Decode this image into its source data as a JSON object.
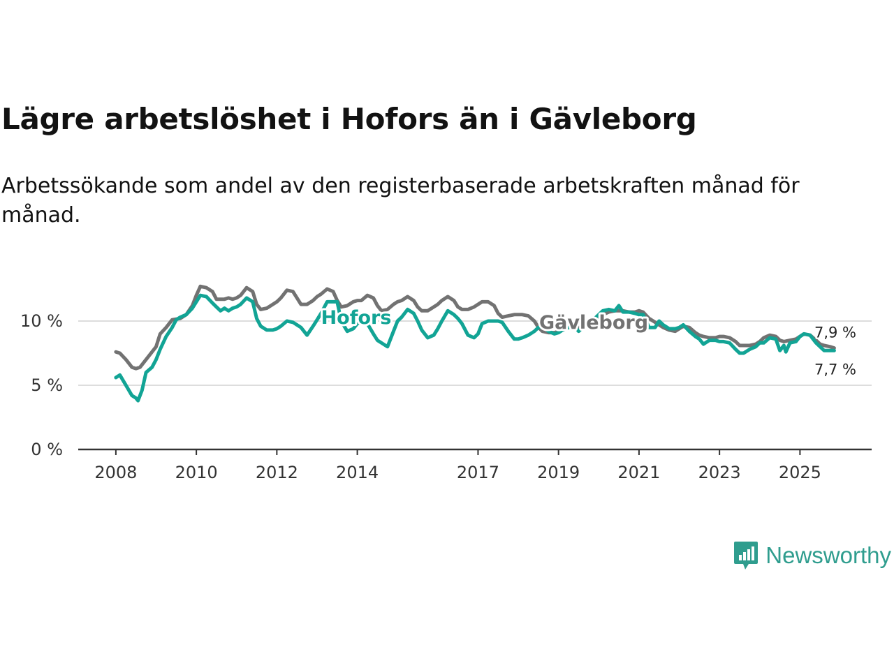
{
  "title": "Lägre arbetslöshet i Hofors än i Gävleborg",
  "subtitle": "Arbetssökande som andel av den registerbaserade arbetskraften månad för månad.",
  "brand": {
    "name": "Newsworthy",
    "icon": "newsworthy-logo-icon"
  },
  "colors": {
    "hofors": "#12a495",
    "gavleborg": "#727272",
    "axis": "#333333",
    "grid": "#dddddd"
  },
  "chart_data": {
    "type": "line",
    "title": "Lägre arbetslöshet i Hofors än i Gävleborg",
    "xlabel": "",
    "ylabel": "",
    "xlim": [
      2007.95,
      2026.0
    ],
    "ylim": [
      0,
      10
    ],
    "x_ticks": [
      {
        "value": 2008,
        "label": "2008"
      },
      {
        "value": 2010,
        "label": "2010"
      },
      {
        "value": 2012,
        "label": "2012"
      },
      {
        "value": 2014,
        "label": "2014"
      },
      {
        "value": 2017,
        "label": "2017"
      },
      {
        "value": 2019,
        "label": "2019"
      },
      {
        "value": 2021,
        "label": "2021"
      },
      {
        "value": 2023,
        "label": "2023"
      },
      {
        "value": 2025,
        "label": "2025"
      }
    ],
    "y_ticks": [
      {
        "value": 0,
        "label": "0 %"
      },
      {
        "value": 5,
        "label": "5 %"
      },
      {
        "value": 10,
        "label": "10 %"
      }
    ],
    "grid": true,
    "series": [
      {
        "name": "Gävleborg",
        "label": "Gävleborg",
        "end_label": "7,9 %",
        "points": [
          [
            2008.0,
            7.6
          ],
          [
            2008.1,
            7.5
          ],
          [
            2008.25,
            7.0
          ],
          [
            2008.4,
            6.4
          ],
          [
            2008.5,
            6.3
          ],
          [
            2008.6,
            6.4
          ],
          [
            2008.75,
            7.0
          ],
          [
            2008.9,
            7.6
          ],
          [
            2009.0,
            8.0
          ],
          [
            2009.1,
            9.0
          ],
          [
            2009.25,
            9.5
          ],
          [
            2009.4,
            10.1
          ],
          [
            2009.6,
            10.2
          ],
          [
            2009.75,
            10.5
          ],
          [
            2009.9,
            11.2
          ],
          [
            2010.0,
            12.0
          ],
          [
            2010.1,
            12.7
          ],
          [
            2010.25,
            12.6
          ],
          [
            2010.4,
            12.3
          ],
          [
            2010.5,
            11.7
          ],
          [
            2010.7,
            11.7
          ],
          [
            2010.8,
            11.8
          ],
          [
            2010.9,
            11.7
          ],
          [
            2011.0,
            11.8
          ],
          [
            2011.1,
            12.0
          ],
          [
            2011.25,
            12.6
          ],
          [
            2011.4,
            12.3
          ],
          [
            2011.5,
            11.3
          ],
          [
            2011.6,
            10.9
          ],
          [
            2011.75,
            11.0
          ],
          [
            2011.9,
            11.3
          ],
          [
            2012.0,
            11.5
          ],
          [
            2012.1,
            11.8
          ],
          [
            2012.25,
            12.4
          ],
          [
            2012.4,
            12.3
          ],
          [
            2012.5,
            11.8
          ],
          [
            2012.6,
            11.3
          ],
          [
            2012.75,
            11.3
          ],
          [
            2012.9,
            11.6
          ],
          [
            2013.0,
            11.9
          ],
          [
            2013.1,
            12.1
          ],
          [
            2013.25,
            12.5
          ],
          [
            2013.4,
            12.3
          ],
          [
            2013.5,
            11.6
          ],
          [
            2013.6,
            11.1
          ],
          [
            2013.75,
            11.2
          ],
          [
            2013.9,
            11.5
          ],
          [
            2014.0,
            11.6
          ],
          [
            2014.1,
            11.6
          ],
          [
            2014.25,
            12.0
          ],
          [
            2014.4,
            11.8
          ],
          [
            2014.5,
            11.2
          ],
          [
            2014.6,
            10.8
          ],
          [
            2014.75,
            10.9
          ],
          [
            2014.9,
            11.3
          ],
          [
            2015.0,
            11.5
          ],
          [
            2015.1,
            11.6
          ],
          [
            2015.25,
            11.9
          ],
          [
            2015.4,
            11.6
          ],
          [
            2015.5,
            11.1
          ],
          [
            2015.6,
            10.8
          ],
          [
            2015.75,
            10.8
          ],
          [
            2015.9,
            11.1
          ],
          [
            2016.0,
            11.3
          ],
          [
            2016.1,
            11.6
          ],
          [
            2016.25,
            11.9
          ],
          [
            2016.4,
            11.6
          ],
          [
            2016.5,
            11.1
          ],
          [
            2016.6,
            10.9
          ],
          [
            2016.75,
            10.9
          ],
          [
            2016.9,
            11.1
          ],
          [
            2017.0,
            11.3
          ],
          [
            2017.1,
            11.5
          ],
          [
            2017.25,
            11.5
          ],
          [
            2017.4,
            11.2
          ],
          [
            2017.5,
            10.6
          ],
          [
            2017.6,
            10.3
          ],
          [
            2017.75,
            10.4
          ],
          [
            2017.9,
            10.5
          ],
          [
            2018.0,
            10.5
          ],
          [
            2018.1,
            10.5
          ],
          [
            2018.25,
            10.4
          ],
          [
            2018.4,
            10.0
          ],
          [
            2018.5,
            9.5
          ],
          [
            2018.6,
            9.2
          ],
          [
            2018.75,
            9.1
          ],
          [
            2018.9,
            9.1
          ],
          [
            2019.0,
            9.2
          ],
          [
            2019.1,
            9.3
          ],
          [
            2019.25,
            9.5
          ],
          [
            2019.4,
            9.6
          ],
          [
            2019.5,
            9.5
          ],
          [
            2019.6,
            9.5
          ],
          [
            2019.75,
            9.7
          ],
          [
            2019.9,
            10.0
          ],
          [
            2020.0,
            10.3
          ],
          [
            2020.1,
            10.5
          ],
          [
            2020.25,
            10.7
          ],
          [
            2020.4,
            10.8
          ],
          [
            2020.5,
            10.8
          ],
          [
            2020.6,
            10.8
          ],
          [
            2020.75,
            10.7
          ],
          [
            2020.9,
            10.7
          ],
          [
            2021.0,
            10.8
          ],
          [
            2021.1,
            10.7
          ],
          [
            2021.25,
            10.2
          ],
          [
            2021.4,
            9.9
          ],
          [
            2021.5,
            9.7
          ],
          [
            2021.6,
            9.5
          ],
          [
            2021.75,
            9.3
          ],
          [
            2021.9,
            9.2
          ],
          [
            2022.0,
            9.4
          ],
          [
            2022.1,
            9.6
          ],
          [
            2022.25,
            9.5
          ],
          [
            2022.4,
            9.1
          ],
          [
            2022.5,
            8.9
          ],
          [
            2022.6,
            8.8
          ],
          [
            2022.75,
            8.7
          ],
          [
            2022.9,
            8.7
          ],
          [
            2023.0,
            8.8
          ],
          [
            2023.1,
            8.8
          ],
          [
            2023.25,
            8.7
          ],
          [
            2023.4,
            8.4
          ],
          [
            2023.5,
            8.1
          ],
          [
            2023.6,
            8.1
          ],
          [
            2023.75,
            8.1
          ],
          [
            2023.9,
            8.2
          ],
          [
            2024.0,
            8.4
          ],
          [
            2024.1,
            8.7
          ],
          [
            2024.25,
            8.9
          ],
          [
            2024.4,
            8.8
          ],
          [
            2024.5,
            8.5
          ],
          [
            2024.6,
            8.4
          ],
          [
            2024.75,
            8.5
          ],
          [
            2024.9,
            8.6
          ],
          [
            2025.0,
            8.8
          ],
          [
            2025.1,
            9.0
          ],
          [
            2025.25,
            8.9
          ],
          [
            2025.4,
            8.5
          ],
          [
            2025.5,
            8.2
          ],
          [
            2025.6,
            8.1
          ],
          [
            2025.75,
            8.0
          ],
          [
            2025.85,
            7.9
          ]
        ]
      },
      {
        "name": "Hofors",
        "label": "Hofors",
        "end_label": "7,7 %",
        "points": [
          [
            2008.0,
            5.6
          ],
          [
            2008.1,
            5.8
          ],
          [
            2008.25,
            5.0
          ],
          [
            2008.4,
            4.2
          ],
          [
            2008.5,
            4.0
          ],
          [
            2008.55,
            3.8
          ],
          [
            2008.65,
            4.6
          ],
          [
            2008.75,
            6.0
          ],
          [
            2008.9,
            6.4
          ],
          [
            2009.0,
            7.0
          ],
          [
            2009.1,
            7.8
          ],
          [
            2009.25,
            8.8
          ],
          [
            2009.4,
            9.5
          ],
          [
            2009.5,
            10.1
          ],
          [
            2009.6,
            10.3
          ],
          [
            2009.75,
            10.5
          ],
          [
            2009.9,
            11.0
          ],
          [
            2010.0,
            11.5
          ],
          [
            2010.1,
            12.0
          ],
          [
            2010.25,
            11.9
          ],
          [
            2010.4,
            11.4
          ],
          [
            2010.5,
            11.1
          ],
          [
            2010.6,
            10.8
          ],
          [
            2010.7,
            11.0
          ],
          [
            2010.8,
            10.8
          ],
          [
            2010.9,
            11.0
          ],
          [
            2011.0,
            11.1
          ],
          [
            2011.1,
            11.3
          ],
          [
            2011.25,
            11.8
          ],
          [
            2011.4,
            11.5
          ],
          [
            2011.5,
            10.2
          ],
          [
            2011.6,
            9.6
          ],
          [
            2011.75,
            9.3
          ],
          [
            2011.9,
            9.3
          ],
          [
            2012.0,
            9.4
          ],
          [
            2012.1,
            9.6
          ],
          [
            2012.25,
            10.0
          ],
          [
            2012.4,
            9.9
          ],
          [
            2012.5,
            9.7
          ],
          [
            2012.6,
            9.5
          ],
          [
            2012.75,
            8.9
          ],
          [
            2012.9,
            9.6
          ],
          [
            2013.0,
            10.1
          ],
          [
            2013.1,
            10.6
          ],
          [
            2013.25,
            11.5
          ],
          [
            2013.4,
            11.5
          ],
          [
            2013.5,
            11.5
          ],
          [
            2013.6,
            10.0
          ],
          [
            2013.75,
            9.2
          ],
          [
            2013.9,
            9.4
          ],
          [
            2014.0,
            9.8
          ],
          [
            2014.1,
            9.9
          ],
          [
            2014.25,
            9.8
          ],
          [
            2014.4,
            9.0
          ],
          [
            2014.5,
            8.5
          ],
          [
            2014.6,
            8.3
          ],
          [
            2014.75,
            8.0
          ],
          [
            2014.9,
            9.2
          ],
          [
            2015.0,
            10.0
          ],
          [
            2015.1,
            10.3
          ],
          [
            2015.25,
            10.9
          ],
          [
            2015.4,
            10.6
          ],
          [
            2015.5,
            10.0
          ],
          [
            2015.6,
            9.3
          ],
          [
            2015.75,
            8.7
          ],
          [
            2015.9,
            8.9
          ],
          [
            2016.0,
            9.4
          ],
          [
            2016.1,
            10.0
          ],
          [
            2016.25,
            10.8
          ],
          [
            2016.4,
            10.5
          ],
          [
            2016.5,
            10.2
          ],
          [
            2016.6,
            9.8
          ],
          [
            2016.75,
            8.9
          ],
          [
            2016.9,
            8.7
          ],
          [
            2017.0,
            9.0
          ],
          [
            2017.1,
            9.8
          ],
          [
            2017.25,
            10.0
          ],
          [
            2017.4,
            10.0
          ],
          [
            2017.5,
            10.0
          ],
          [
            2017.6,
            9.9
          ],
          [
            2017.75,
            9.2
          ],
          [
            2017.9,
            8.6
          ],
          [
            2018.0,
            8.6
          ],
          [
            2018.1,
            8.7
          ],
          [
            2018.25,
            8.9
          ],
          [
            2018.4,
            9.2
          ],
          [
            2018.5,
            9.5
          ],
          [
            2018.6,
            9.6
          ],
          [
            2018.75,
            9.2
          ],
          [
            2018.9,
            9.0
          ],
          [
            2019.0,
            9.1
          ],
          [
            2019.1,
            9.3
          ],
          [
            2019.25,
            9.5
          ],
          [
            2019.4,
            9.6
          ],
          [
            2019.5,
            9.2
          ],
          [
            2019.6,
            9.5
          ],
          [
            2019.75,
            9.8
          ],
          [
            2019.9,
            10.2
          ],
          [
            2020.0,
            10.5
          ],
          [
            2020.1,
            10.8
          ],
          [
            2020.25,
            10.9
          ],
          [
            2020.4,
            10.8
          ],
          [
            2020.5,
            11.2
          ],
          [
            2020.6,
            10.7
          ],
          [
            2020.75,
            10.7
          ],
          [
            2020.9,
            10.6
          ],
          [
            2021.0,
            10.5
          ],
          [
            2021.1,
            10.5
          ],
          [
            2021.25,
            9.5
          ],
          [
            2021.4,
            9.5
          ],
          [
            2021.5,
            10.0
          ],
          [
            2021.6,
            9.7
          ],
          [
            2021.75,
            9.4
          ],
          [
            2021.9,
            9.4
          ],
          [
            2022.0,
            9.5
          ],
          [
            2022.1,
            9.7
          ],
          [
            2022.25,
            9.2
          ],
          [
            2022.4,
            8.8
          ],
          [
            2022.5,
            8.6
          ],
          [
            2022.6,
            8.2
          ],
          [
            2022.75,
            8.5
          ],
          [
            2022.9,
            8.5
          ],
          [
            2023.0,
            8.4
          ],
          [
            2023.1,
            8.4
          ],
          [
            2023.25,
            8.3
          ],
          [
            2023.4,
            7.8
          ],
          [
            2023.5,
            7.5
          ],
          [
            2023.6,
            7.5
          ],
          [
            2023.75,
            7.8
          ],
          [
            2023.9,
            8.0
          ],
          [
            2024.0,
            8.3
          ],
          [
            2024.1,
            8.3
          ],
          [
            2024.25,
            8.7
          ],
          [
            2024.4,
            8.6
          ],
          [
            2024.5,
            7.7
          ],
          [
            2024.6,
            8.1
          ],
          [
            2024.65,
            7.6
          ],
          [
            2024.75,
            8.3
          ],
          [
            2024.9,
            8.4
          ],
          [
            2025.0,
            8.8
          ],
          [
            2025.1,
            9.0
          ],
          [
            2025.25,
            8.9
          ],
          [
            2025.4,
            8.3
          ],
          [
            2025.5,
            8.0
          ],
          [
            2025.6,
            7.7
          ],
          [
            2025.75,
            7.7
          ],
          [
            2025.85,
            7.7
          ]
        ]
      }
    ]
  }
}
